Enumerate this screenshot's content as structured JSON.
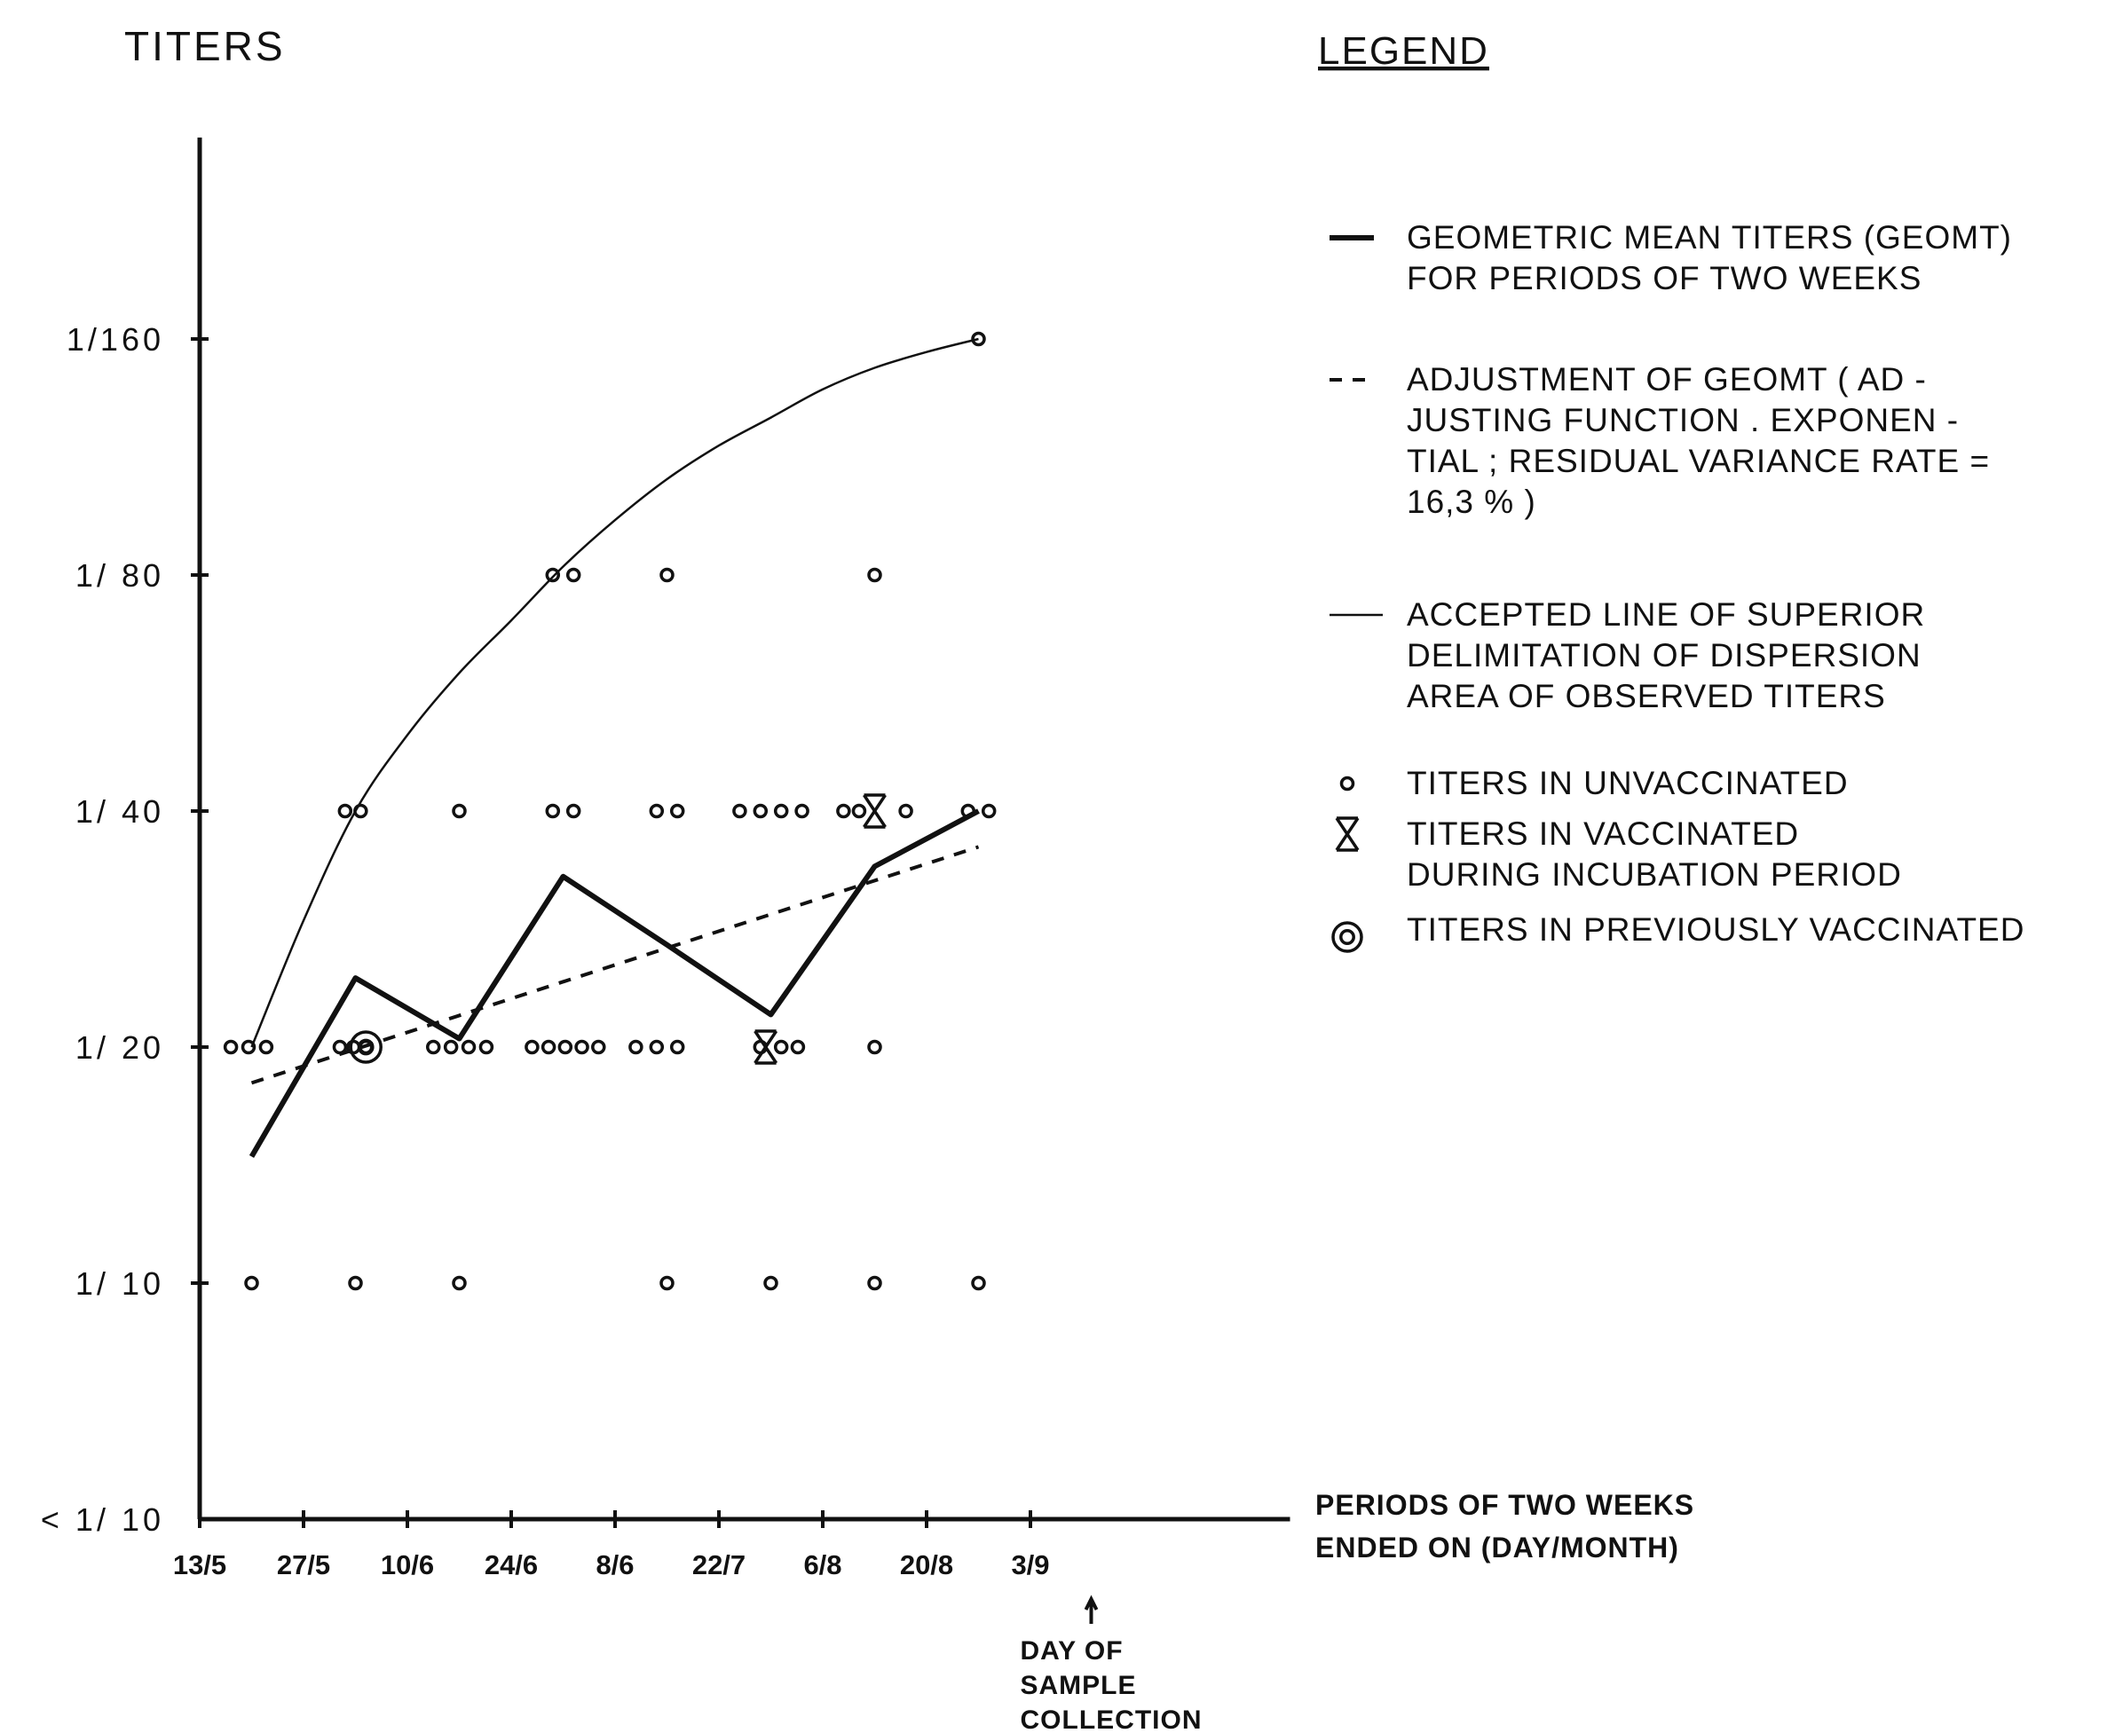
{
  "chart_data": {
    "type": "scatter",
    "title": "",
    "ylabel": "TITERS",
    "xlabel_lines": [
      "PERIODS OF TWO WEEKS",
      "ENDED ON (DAY/MONTH)"
    ],
    "y_scale": "log2",
    "y_ticks": [
      {
        "label": "< 1/ 10",
        "value": 5
      },
      {
        "label": "1/ 10",
        "value": 10
      },
      {
        "label": "1/ 20",
        "value": 20
      },
      {
        "label": "1/ 40",
        "value": 40
      },
      {
        "label": "1/ 80",
        "value": 80
      },
      {
        "label": "1/160",
        "value": 160
      }
    ],
    "x_ticks": [
      "13/5",
      "27/5",
      "10/6",
      "24/6",
      "8/6",
      "22/7",
      "6/8",
      "20/8",
      "3/9"
    ],
    "x_axis_end": 10.5,
    "annotation": {
      "x": 8.5,
      "lines": [
        "DAY OF",
        "SAMPLE",
        "COLLECTION"
      ]
    },
    "geometric_mean": {
      "x": [
        0.5,
        1.5,
        2.5,
        3.5,
        4.5,
        5.5,
        6.5,
        7.5
      ],
      "y": [
        14.5,
        24.5,
        20.5,
        33,
        27,
        22,
        34,
        40
      ]
    },
    "adjustment": {
      "x": [
        0.5,
        7.5
      ],
      "y": [
        18,
        36
      ]
    },
    "superior_line": {
      "x": [
        0.5,
        1.0,
        1.5,
        2.0,
        2.5,
        3.0,
        3.5,
        4.0,
        4.5,
        5.0,
        5.5,
        6.0,
        6.5,
        7.0,
        7.5
      ],
      "y": [
        20,
        29,
        40,
        50,
        60,
        70,
        82,
        94,
        106,
        117,
        127,
        138,
        147,
        154,
        160
      ]
    },
    "unvaccinated": [
      {
        "x": 0.3,
        "y": 20
      },
      {
        "x": 0.47,
        "y": 20
      },
      {
        "x": 0.64,
        "y": 20
      },
      {
        "x": 0.5,
        "y": 10
      },
      {
        "x": 1.35,
        "y": 20
      },
      {
        "x": 1.48,
        "y": 20
      },
      {
        "x": 1.6,
        "y": 20
      },
      {
        "x": 1.4,
        "y": 40
      },
      {
        "x": 1.55,
        "y": 40
      },
      {
        "x": 1.5,
        "y": 10
      },
      {
        "x": 2.25,
        "y": 20
      },
      {
        "x": 2.42,
        "y": 20
      },
      {
        "x": 2.59,
        "y": 20
      },
      {
        "x": 2.76,
        "y": 20
      },
      {
        "x": 2.5,
        "y": 40
      },
      {
        "x": 2.5,
        "y": 10
      },
      {
        "x": 3.2,
        "y": 20
      },
      {
        "x": 3.36,
        "y": 20
      },
      {
        "x": 3.52,
        "y": 20
      },
      {
        "x": 3.68,
        "y": 20
      },
      {
        "x": 3.84,
        "y": 20
      },
      {
        "x": 3.4,
        "y": 40
      },
      {
        "x": 3.6,
        "y": 40
      },
      {
        "x": 3.4,
        "y": 80
      },
      {
        "x": 3.6,
        "y": 80
      },
      {
        "x": 4.2,
        "y": 20
      },
      {
        "x": 4.4,
        "y": 20
      },
      {
        "x": 4.6,
        "y": 20
      },
      {
        "x": 4.4,
        "y": 40
      },
      {
        "x": 4.6,
        "y": 40
      },
      {
        "x": 4.5,
        "y": 80
      },
      {
        "x": 4.5,
        "y": 10
      },
      {
        "x": 5.4,
        "y": 20
      },
      {
        "x": 5.6,
        "y": 20
      },
      {
        "x": 5.76,
        "y": 20
      },
      {
        "x": 5.2,
        "y": 40
      },
      {
        "x": 5.4,
        "y": 40
      },
      {
        "x": 5.6,
        "y": 40
      },
      {
        "x": 5.8,
        "y": 40
      },
      {
        "x": 5.5,
        "y": 10
      },
      {
        "x": 6.5,
        "y": 20
      },
      {
        "x": 6.2,
        "y": 40
      },
      {
        "x": 6.35,
        "y": 40
      },
      {
        "x": 6.8,
        "y": 40
      },
      {
        "x": 6.5,
        "y": 80
      },
      {
        "x": 6.5,
        "y": 10
      },
      {
        "x": 7.4,
        "y": 40
      },
      {
        "x": 7.6,
        "y": 40
      },
      {
        "x": 7.5,
        "y": 160
      },
      {
        "x": 7.5,
        "y": 10
      }
    ],
    "vaccinated_incubation": [
      {
        "x": 5.45,
        "y": 20
      },
      {
        "x": 6.5,
        "y": 40
      }
    ],
    "previously_vaccinated": [
      {
        "x": 1.6,
        "y": 20
      }
    ],
    "legend": {
      "title": "LEGEND",
      "entries": [
        {
          "symbol": "thick-line",
          "lines": [
            "GEOMETRIC MEAN TITERS (GEOMT)",
            "FOR PERIODS OF TWO WEEKS"
          ]
        },
        {
          "symbol": "dotted-line",
          "lines": [
            "ADJUSTMENT OF GEOMT ( AD -",
            "JUSTING FUNCTION . EXPONEN -",
            "TIAL ; RESIDUAL VARIANCE RATE =",
            "16,3 % )"
          ]
        },
        {
          "symbol": "thin-line",
          "lines": [
            "ACCEPTED LINE OF SUPERIOR",
            "DELIMITATION OF DISPERSION",
            "AREA OF OBSERVED TITERS"
          ]
        },
        {
          "symbol": "circle",
          "lines": [
            "TITERS IN UNVACCINATED"
          ]
        },
        {
          "symbol": "x-mark",
          "lines": [
            "TITERS IN VACCINATED",
            "DURING INCUBATION PERIOD"
          ]
        },
        {
          "symbol": "ringed-circle",
          "lines": [
            "TITERS IN PREVIOUSLY VACCINATED"
          ]
        }
      ]
    }
  }
}
